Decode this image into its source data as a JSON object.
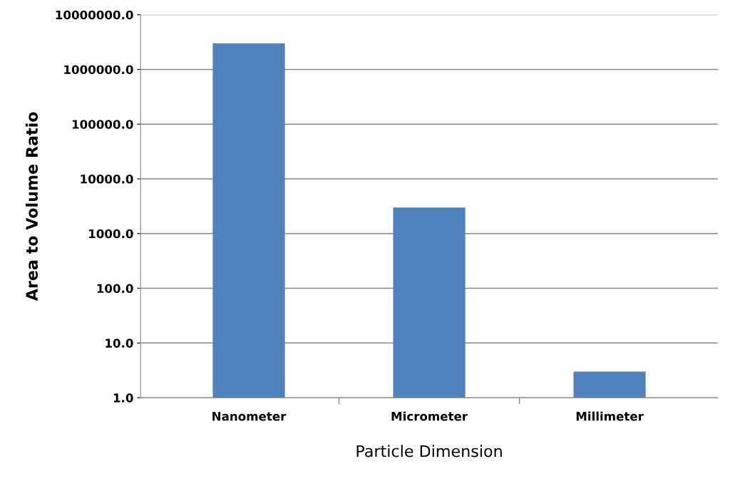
{
  "chart_data": {
    "type": "bar",
    "xlabel": "Particle Dimension",
    "ylabel": "Area to Volume Ratio",
    "categories": [
      "Nanometer",
      "Micrometer",
      "Millimeter"
    ],
    "values": [
      3000000,
      3000,
      3
    ],
    "color": "#4f81bd",
    "log": true,
    "ylim": [
      1,
      10000000
    ],
    "yticks": [
      {
        "value": 1,
        "label": "1.0"
      },
      {
        "value": 10,
        "label": "10.0"
      },
      {
        "value": 100,
        "label": "100.0"
      },
      {
        "value": 1000,
        "label": "1000.0"
      },
      {
        "value": 10000,
        "label": "10000.0"
      },
      {
        "value": 100000,
        "label": "100000.0"
      },
      {
        "value": 1000000,
        "label": "1000000.0"
      },
      {
        "value": 10000000,
        "label": "10000000.0"
      }
    ],
    "grid": "y",
    "legend": false
  }
}
